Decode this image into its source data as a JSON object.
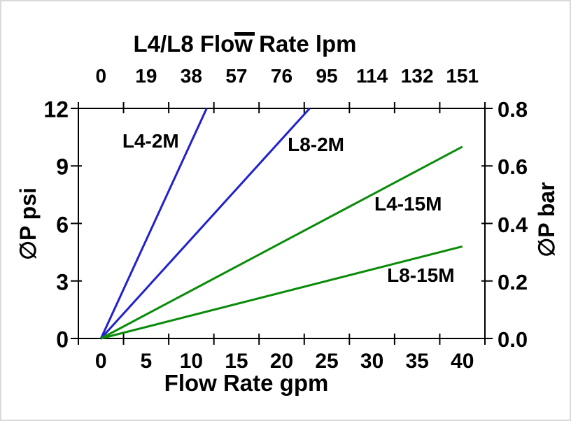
{
  "chart_data": {
    "type": "line",
    "title": "L4/L8  Flow Rate lpm",
    "grid": false,
    "legend": "inline-labels-on-lines",
    "background_color": "#ffffff",
    "axis_color": "#000000",
    "axes": {
      "top": {
        "title": "L4/L8  Flow Rate lpm",
        "unit": "lpm",
        "tick_labels": [
          "0",
          "19",
          "38",
          "57",
          "76",
          "95",
          "114",
          "132",
          "151"
        ]
      },
      "bottom": {
        "title": "Flow Rate gpm",
        "unit": "gpm",
        "tick_labels": [
          "0",
          "5",
          "10",
          "15",
          "20",
          "25",
          "30",
          "35",
          "40"
        ],
        "min": 0,
        "max": 40
      },
      "left": {
        "title": "∅P psi",
        "unit": "psi",
        "tick_labels": [
          "0",
          "3",
          "6",
          "9",
          "12"
        ],
        "tick_values": [
          0,
          3,
          6,
          9,
          12
        ],
        "min": 0,
        "max": 12
      },
      "right": {
        "title": "∅P bar",
        "unit": "bar",
        "tick_labels": [
          "0.0",
          "0.2",
          "0.4",
          "0.6",
          "0.8"
        ],
        "tick_values": [
          0.0,
          0.2,
          0.4,
          0.6,
          0.8
        ],
        "min": 0,
        "max": 0.8
      }
    },
    "series": [
      {
        "name": "L4-2M",
        "color": "#2222cc",
        "points_gpm_psi": [
          [
            0,
            0
          ],
          [
            11.7,
            12
          ]
        ],
        "label_at_gpm_psi": [
          5.5,
          10.3
        ]
      },
      {
        "name": "L8-2M",
        "color": "#2222cc",
        "points_gpm_psi": [
          [
            0,
            0
          ],
          [
            23.1,
            12
          ]
        ],
        "label_at_gpm_psi": [
          23.8,
          10.1
        ]
      },
      {
        "name": "L4-15M",
        "color": "#0a8c0a",
        "points_gpm_psi": [
          [
            0,
            0
          ],
          [
            40,
            10
          ]
        ],
        "label_at_gpm_psi": [
          34.0,
          7.0
        ]
      },
      {
        "name": "L8-15M",
        "color": "#0a8c0a",
        "points_gpm_psi": [
          [
            0,
            0
          ],
          [
            40,
            4.8
          ]
        ],
        "label_at_gpm_psi": [
          35.4,
          3.3
        ]
      }
    ]
  }
}
